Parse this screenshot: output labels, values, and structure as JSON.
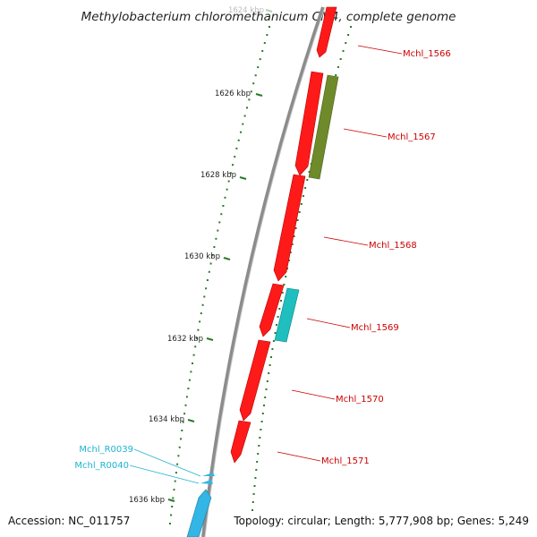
{
  "title": "Methylobacterium chloromethanicum CM4, complete genome",
  "footer": {
    "accession": "Accession: NC_011757",
    "summary": "Topology: circular; Length: 5,777,908 bp; Genes: 5,249"
  },
  "colors": {
    "backbone": "#8c8c8c",
    "cds_forward": "#ff1a1a",
    "cds_olive": "#6e8a2a",
    "cds_teal": "#1fbfbf",
    "rna": "#33b5e5",
    "tick": "#2a7a2a",
    "label_red": "#cc0000",
    "label_cyan": "#1fb3cf"
  },
  "ticks": [
    {
      "label": "1624 kbp",
      "faded": true
    },
    {
      "label": "1626 kbp"
    },
    {
      "label": "1628 kbp"
    },
    {
      "label": "1630 kbp"
    },
    {
      "label": "1632 kbp"
    },
    {
      "label": "1634 kbp"
    },
    {
      "label": "1636 kbp"
    }
  ],
  "gene_labels": [
    {
      "text": "Mchl_1566",
      "kind": "cds"
    },
    {
      "text": "Mchl_1567",
      "kind": "cds"
    },
    {
      "text": "Mchl_1568",
      "kind": "cds"
    },
    {
      "text": "Mchl_1569",
      "kind": "cds"
    },
    {
      "text": "Mchl_1570",
      "kind": "cds"
    },
    {
      "text": "Mchl_1571",
      "kind": "cds"
    },
    {
      "text": "Mchl_R0039",
      "kind": "rna"
    },
    {
      "text": "Mchl_R0040",
      "kind": "rna"
    }
  ]
}
